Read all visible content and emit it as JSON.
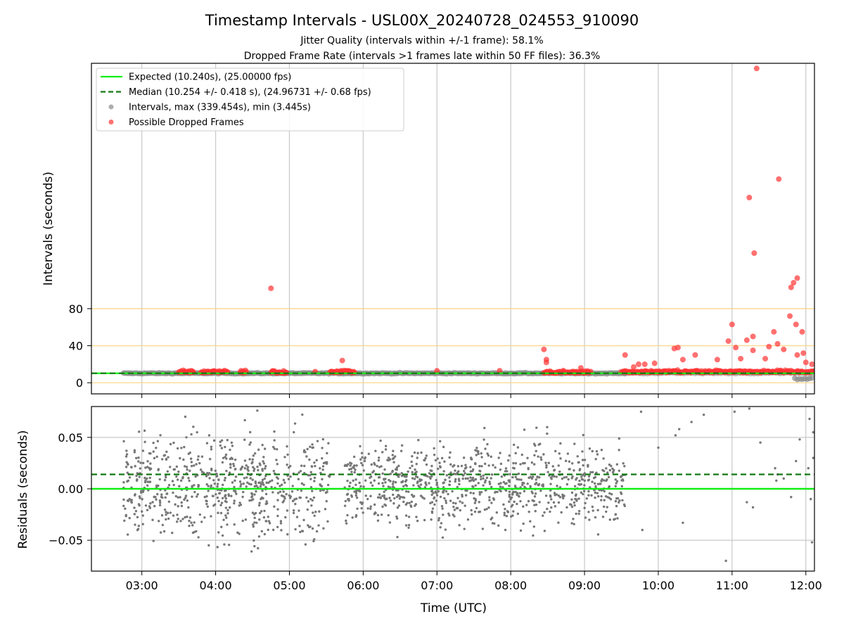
{
  "chart_data": [
    {
      "type": "scatter",
      "title": "Timestamp Intervals - USL00X_20240728_024553_910090",
      "subtitles": [
        "Jitter Quality (intervals within +/-1 frame): 58.1%",
        "Dropped Frame Rate (intervals >1 frames late within 50 FF files): 36.3%"
      ],
      "xlabel": "",
      "ylabel": "Intervals (seconds)",
      "xlim": [
        "02:19",
        "12:07"
      ],
      "ylim": [
        -12,
        345
      ],
      "yticks": [
        0,
        40,
        80
      ],
      "grid": {
        "vertical": true,
        "horizontal_lines_at": [
          0,
          40,
          80
        ],
        "horizontal_color": "#ffd37f"
      },
      "legend": {
        "placement": "top-left",
        "entries": [
          {
            "label": "Expected (10.240s), (25.00000 fps)",
            "style": "solid-line",
            "color": "#11ee11"
          },
          {
            "label": "Median (10.254 +/- 0.418 s), (24.96731 +/- 0.68 fps)",
            "style": "dashed-line",
            "color": "#137713"
          },
          {
            "label": "Intervals, max (339.454s), min (3.445s)",
            "style": "marker",
            "color": "#8a8a8a"
          },
          {
            "label": "Possible Dropped Frames",
            "style": "marker",
            "color": "#ff3333"
          }
        ]
      },
      "expected_interval": 10.24,
      "median_interval": 10.254,
      "series": [
        {
          "name": "Intervals, max (339.454s), min (3.445s)",
          "color": "#8a8a8a",
          "base_value": 10.24,
          "segments": [
            {
              "start": "02:45",
              "end": "09:33",
              "step_minutes": 1
            },
            {
              "start": "09:33",
              "end": "12:07",
              "step_minutes": 3
            }
          ],
          "low_points": [
            {
              "x": "11:53",
              "y": 3.5
            },
            {
              "x": "11:55",
              "y": 4.2
            },
            {
              "x": "11:57",
              "y": 3.8
            },
            {
              "x": "11:59",
              "y": 4.5
            },
            {
              "x": "12:01",
              "y": 3.9
            },
            {
              "x": "12:03",
              "y": 4.6
            },
            {
              "x": "12:05",
              "y": 5.2
            },
            {
              "x": "11:51",
              "y": 5.0
            }
          ]
        },
        {
          "name": "Possible Dropped Frames",
          "color": "#ff3333",
          "clusters": [
            {
              "start": "03:30",
              "end": "03:42",
              "y": 11
            },
            {
              "start": "03:48",
              "end": "04:10",
              "y": 11
            },
            {
              "start": "04:20",
              "end": "04:25",
              "y": 11
            },
            {
              "start": "04:45",
              "end": "04:58",
              "y": 10.5
            },
            {
              "start": "05:33",
              "end": "05:53",
              "y": 11
            },
            {
              "start": "08:27",
              "end": "09:05",
              "y": 10.5
            },
            {
              "start": "09:30",
              "end": "12:07",
              "y": 11
            }
          ],
          "outliers": [
            {
              "x": "04:45",
              "y": 102
            },
            {
              "x": "05:43",
              "y": 24
            },
            {
              "x": "05:21",
              "y": 12
            },
            {
              "x": "07:00",
              "y": 13
            },
            {
              "x": "07:51",
              "y": 13
            },
            {
              "x": "08:27",
              "y": 36
            },
            {
              "x": "08:29",
              "y": 25
            },
            {
              "x": "08:29",
              "y": 22
            },
            {
              "x": "08:57",
              "y": 16
            },
            {
              "x": "09:33",
              "y": 30
            },
            {
              "x": "09:40",
              "y": 17
            },
            {
              "x": "09:44",
              "y": 20
            },
            {
              "x": "09:49",
              "y": 20
            },
            {
              "x": "09:57",
              "y": 21
            },
            {
              "x": "10:13",
              "y": 37
            },
            {
              "x": "10:16",
              "y": 38
            },
            {
              "x": "10:20",
              "y": 25
            },
            {
              "x": "10:30",
              "y": 30
            },
            {
              "x": "10:48",
              "y": 25
            },
            {
              "x": "10:57",
              "y": 45
            },
            {
              "x": "11:00",
              "y": 63
            },
            {
              "x": "11:03",
              "y": 38
            },
            {
              "x": "11:07",
              "y": 26
            },
            {
              "x": "11:12",
              "y": 46
            },
            {
              "x": "11:14",
              "y": 200
            },
            {
              "x": "11:17",
              "y": 50
            },
            {
              "x": "11:17",
              "y": 35
            },
            {
              "x": "11:18",
              "y": 140
            },
            {
              "x": "11:20",
              "y": 339.454
            },
            {
              "x": "11:27",
              "y": 26
            },
            {
              "x": "11:30",
              "y": 39
            },
            {
              "x": "11:34",
              "y": 55
            },
            {
              "x": "11:37",
              "y": 42
            },
            {
              "x": "11:38",
              "y": 220
            },
            {
              "x": "11:42",
              "y": 36
            },
            {
              "x": "11:47",
              "y": 72
            },
            {
              "x": "11:48",
              "y": 103
            },
            {
              "x": "11:50",
              "y": 108
            },
            {
              "x": "11:53",
              "y": 113
            },
            {
              "x": "11:52",
              "y": 63
            },
            {
              "x": "11:53",
              "y": 30
            },
            {
              "x": "11:57",
              "y": 55
            },
            {
              "x": "11:58",
              "y": 32
            },
            {
              "x": "12:00",
              "y": 22
            },
            {
              "x": "12:05",
              "y": 20
            }
          ]
        }
      ]
    },
    {
      "type": "scatter",
      "title": "",
      "xlabel": "Time (UTC)",
      "ylabel": "Residuals (seconds)",
      "xlim": [
        "02:19",
        "12:07"
      ],
      "ylim": [
        -0.08,
        0.08
      ],
      "xticks": [
        "03:00",
        "04:00",
        "05:00",
        "06:00",
        "07:00",
        "08:00",
        "09:00",
        "10:00",
        "11:00",
        "12:00"
      ],
      "ytick_labels": [
        "0.05",
        "0.00",
        "−0.05"
      ],
      "yticks": [
        0.05,
        0.0,
        -0.05
      ],
      "grid": {
        "vertical": true,
        "horizontal": true
      },
      "expected_residual": 0.0,
      "median_residual": 0.014,
      "series": [
        {
          "name": "",
          "color": "#777777",
          "dense_segments": [
            {
              "start": "02:45",
              "end": "03:35",
              "count": 200,
              "mean": 0.004,
              "spread": 0.032
            },
            {
              "start": "03:35",
              "end": "04:10",
              "count": 150,
              "mean": 0.004,
              "spread": 0.04
            },
            {
              "start": "04:10",
              "end": "05:33",
              "count": 330,
              "mean": 0.004,
              "spread": 0.034
            },
            {
              "start": "05:45",
              "end": "09:33",
              "count": 900,
              "mean": 0.004,
              "spread": 0.027
            }
          ],
          "sparse_points": [
            {
              "x": "09:47",
              "y": -0.04
            },
            {
              "x": "09:46",
              "y": 0.075
            },
            {
              "x": "10:00",
              "y": 0.04
            },
            {
              "x": "10:14",
              "y": 0.052
            },
            {
              "x": "10:17",
              "y": 0.058
            },
            {
              "x": "10:20",
              "y": -0.033
            },
            {
              "x": "10:27",
              "y": 0.065
            },
            {
              "x": "10:37",
              "y": 0.072
            },
            {
              "x": "10:55",
              "y": -0.07
            },
            {
              "x": "11:02",
              "y": 0.075
            },
            {
              "x": "11:12",
              "y": -0.013
            },
            {
              "x": "11:14",
              "y": 0.078
            },
            {
              "x": "11:17",
              "y": -0.018
            },
            {
              "x": "11:23",
              "y": 0.045
            },
            {
              "x": "11:35",
              "y": 0.02
            },
            {
              "x": "11:37",
              "y": 0.014
            },
            {
              "x": "11:42",
              "y": 0.01
            },
            {
              "x": "11:48",
              "y": -0.008
            },
            {
              "x": "11:52",
              "y": 0.027
            },
            {
              "x": "11:55",
              "y": 0.048
            },
            {
              "x": "12:02",
              "y": 0.02
            },
            {
              "x": "12:04",
              "y": -0.01
            },
            {
              "x": "12:05",
              "y": -0.052
            },
            {
              "x": "12:06",
              "y": 0.055
            },
            {
              "x": "12:06",
              "y": 0.03
            },
            {
              "x": "12:03",
              "y": 0.068
            },
            {
              "x": "11:36",
              "y": 0.008
            }
          ]
        }
      ]
    }
  ]
}
